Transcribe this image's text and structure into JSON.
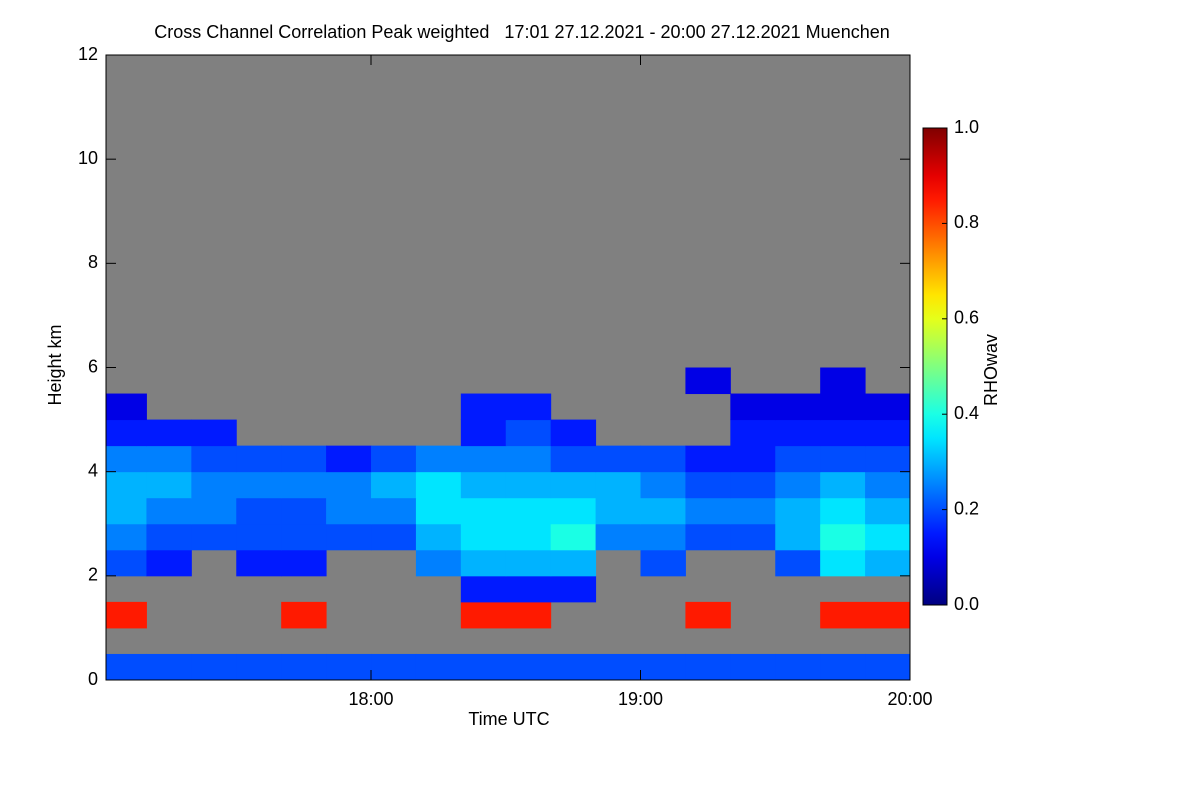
{
  "chart_data": {
    "type": "heatmap",
    "title": "Cross Channel Correlation Peak weighted   17:01 27.12.2021 - 20:00 27.12.2021 Muenchen",
    "x_label": "Time UTC",
    "y_label": "Height km",
    "xlim": [
      "17:01",
      "20:00"
    ],
    "xticks": [
      "18:00",
      "19:00",
      "20:00"
    ],
    "ylim": [
      0,
      12
    ],
    "yticks": [
      0,
      2,
      4,
      6,
      8,
      10,
      12
    ],
    "x_bins": [
      "17:01",
      "17:10",
      "17:20",
      "17:30",
      "17:40",
      "17:50",
      "18:00",
      "18:10",
      "18:20",
      "18:30",
      "18:40",
      "18:50",
      "19:00",
      "19:10",
      "19:20",
      "19:30",
      "19:40",
      "19:50",
      "20:00"
    ],
    "y_bins": [
      0,
      0.5,
      1,
      1.5,
      2,
      2.5,
      3,
      3.5,
      4,
      4.5,
      5,
      5.5,
      6
    ],
    "z": [
      [
        0.2,
        0.2,
        0.2,
        0.2,
        0.2,
        0.2,
        0.2,
        0.2,
        0.2,
        0.2,
        0.2,
        0.2,
        0.2,
        0.2,
        0.2,
        0.2,
        0.2,
        0.2
      ],
      [
        null,
        null,
        null,
        null,
        null,
        null,
        null,
        null,
        null,
        null,
        null,
        null,
        null,
        null,
        null,
        null,
        null,
        null
      ],
      [
        0.85,
        null,
        null,
        null,
        0.85,
        null,
        null,
        null,
        0.85,
        0.85,
        null,
        null,
        null,
        0.85,
        null,
        null,
        0.85,
        0.85
      ],
      [
        null,
        null,
        null,
        null,
        null,
        null,
        null,
        null,
        0.15,
        0.15,
        0.15,
        null,
        null,
        null,
        null,
        null,
        null,
        null
      ],
      [
        0.2,
        0.15,
        null,
        0.15,
        0.15,
        null,
        null,
        0.25,
        0.3,
        0.3,
        0.3,
        null,
        0.2,
        null,
        null,
        0.2,
        0.35,
        0.3
      ],
      [
        0.25,
        0.2,
        0.2,
        0.2,
        0.2,
        0.2,
        0.2,
        0.3,
        0.35,
        0.35,
        0.4,
        0.25,
        0.25,
        0.2,
        0.2,
        0.3,
        0.4,
        0.35
      ],
      [
        0.3,
        0.25,
        0.25,
        0.2,
        0.2,
        0.25,
        0.25,
        0.35,
        0.35,
        0.35,
        0.35,
        0.3,
        0.3,
        0.25,
        0.25,
        0.3,
        0.35,
        0.3
      ],
      [
        0.3,
        0.3,
        0.25,
        0.25,
        0.25,
        0.25,
        0.3,
        0.35,
        0.3,
        0.3,
        0.3,
        0.3,
        0.25,
        0.2,
        0.2,
        0.25,
        0.3,
        0.25
      ],
      [
        0.25,
        0.25,
        0.2,
        0.2,
        0.2,
        0.15,
        0.2,
        0.25,
        0.25,
        0.25,
        0.2,
        0.2,
        0.2,
        0.15,
        0.15,
        0.2,
        0.2,
        0.2
      ],
      [
        0.15,
        0.15,
        0.15,
        null,
        null,
        null,
        null,
        null,
        0.15,
        0.2,
        0.15,
        null,
        null,
        null,
        0.15,
        0.15,
        0.15,
        0.15
      ],
      [
        0.1,
        null,
        null,
        null,
        null,
        null,
        null,
        null,
        0.15,
        0.15,
        null,
        null,
        null,
        null,
        0.1,
        0.1,
        0.1,
        0.1
      ],
      [
        null,
        null,
        null,
        null,
        null,
        null,
        null,
        null,
        null,
        null,
        null,
        null,
        null,
        0.1,
        null,
        null,
        0.1,
        null
      ]
    ],
    "colormap": "jet",
    "background": "#808080",
    "zlim": [
      0,
      1
    ],
    "zticks": [
      {
        "value": 0,
        "label": "0.0"
      },
      {
        "value": 0.2,
        "label": "0.2"
      },
      {
        "value": 0.4,
        "label": "0.4"
      },
      {
        "value": 0.6,
        "label": "0.6"
      },
      {
        "value": 0.8,
        "label": "0.8"
      },
      {
        "value": 1,
        "label": "1.0"
      }
    ],
    "colorbar_label": "RHOwav"
  }
}
